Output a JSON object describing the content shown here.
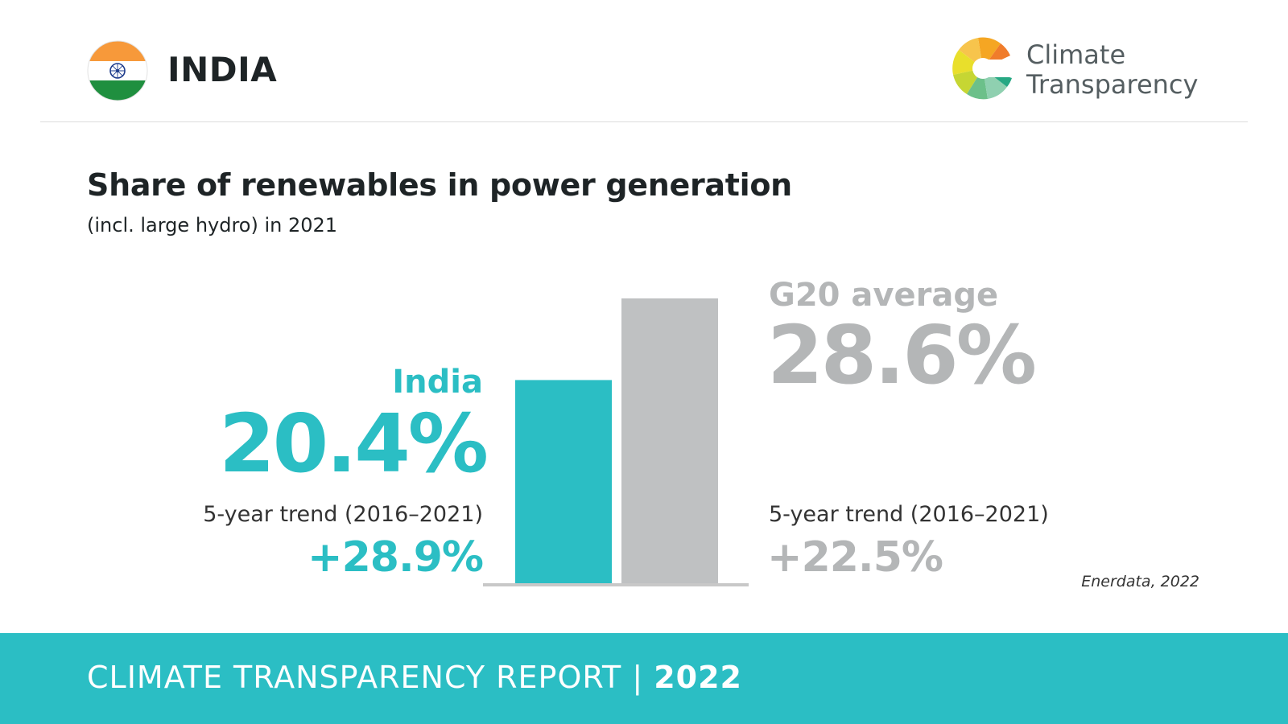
{
  "header": {
    "country": "INDIA",
    "logo_line1": "Climate",
    "logo_line2": "Transparency"
  },
  "colors": {
    "country": "#2bbec4",
    "g20": "#bfc1c2",
    "baseline": "#c8c8c8"
  },
  "chart_data": {
    "type": "bar",
    "title": "Share of renewables in power generation",
    "subtitle": "(incl. large hydro) in 2021",
    "categories": [
      "India",
      "G20 average"
    ],
    "values": [
      20.4,
      28.6
    ],
    "unit": "%",
    "value_labels": [
      "20.4%",
      "28.6%"
    ],
    "trend_label": "5-year trend (2016–2021)",
    "trend_values": [
      "+28.9%",
      "+22.5%"
    ],
    "source": "Enerdata, 2022",
    "ylim": [
      0,
      31.5
    ],
    "grid": false
  },
  "footer": {
    "report": "CLIMATE TRANSPARENCY REPORT",
    "separator": "|",
    "year": "2022"
  }
}
